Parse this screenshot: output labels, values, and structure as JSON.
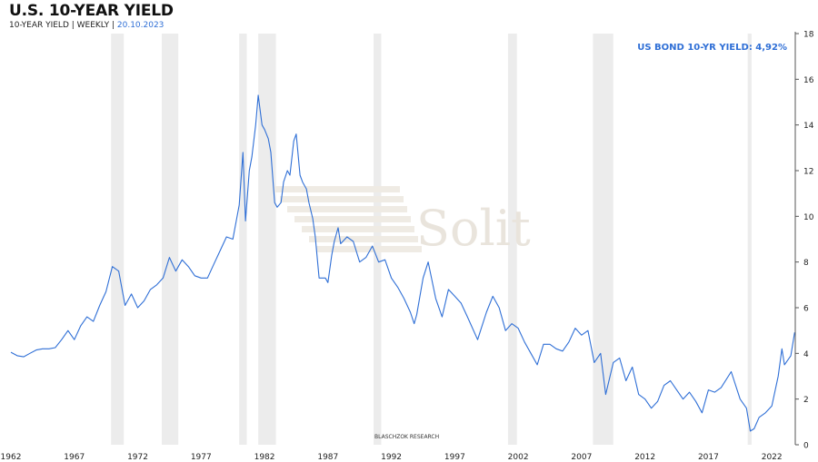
{
  "header": {
    "title": "U.S. 10-YEAR YIELD",
    "subtitle_main": "10-YEAR YIELD | WEEKLY | ",
    "subtitle_date": "20.10.2023"
  },
  "watermark": {
    "brand": "Solit",
    "credit": "BLASCHZOK    RESEARCH"
  },
  "chart_data": {
    "type": "line",
    "title": "U.S. 10-YEAR YIELD",
    "annotation": "US BOND 10-YR YIELD: 4,92%",
    "xlabel": "",
    "ylabel": "",
    "xlim": [
      1962.0,
      2023.85
    ],
    "ylim": [
      0,
      18
    ],
    "x_ticks": [
      1962,
      1967,
      1972,
      1977,
      1982,
      1987,
      1992,
      1997,
      2002,
      2007,
      2012,
      2017,
      2022
    ],
    "y_ticks": [
      0,
      2,
      4,
      6,
      8,
      10,
      12,
      14,
      16,
      18
    ],
    "y_axis_side": "right",
    "line_color": "#2f6fd6",
    "recession_color": "#ececec",
    "recessions": [
      [
        1969.9,
        1970.9
      ],
      [
        1973.9,
        1975.2
      ],
      [
        1980.0,
        1980.6
      ],
      [
        1981.5,
        1982.9
      ],
      [
        1990.6,
        1991.2
      ],
      [
        2001.2,
        2001.9
      ],
      [
        2007.9,
        2009.5
      ],
      [
        2020.1,
        2020.4
      ]
    ],
    "series": [
      {
        "values_x": [
          1962.0,
          1962.5,
          1963.0,
          1963.5,
          1964.0,
          1964.5,
          1965.0,
          1965.5,
          1966.0,
          1966.5,
          1967.0,
          1967.5,
          1968.0,
          1968.5,
          1969.0,
          1969.5,
          1970.0,
          1970.5,
          1971.0,
          1971.5,
          1972.0,
          1972.5,
          1973.0,
          1973.5,
          1974.0,
          1974.5,
          1975.0,
          1975.5,
          1976.0,
          1976.5,
          1977.0,
          1977.5,
          1978.0,
          1978.5,
          1979.0,
          1979.5,
          1980.0,
          1980.3,
          1980.5,
          1980.8,
          1981.0,
          1981.3,
          1981.5,
          1981.8,
          1982.0,
          1982.3,
          1982.5,
          1982.8,
          1983.0,
          1983.3,
          1983.5,
          1983.8,
          1984.0,
          1984.3,
          1984.5,
          1984.8,
          1985.0,
          1985.3,
          1985.5,
          1985.8,
          1986.0,
          1986.3,
          1986.5,
          1986.8,
          1987.0,
          1987.3,
          1987.5,
          1987.8,
          1988.0,
          1988.5,
          1989.0,
          1989.5,
          1990.0,
          1990.5,
          1991.0,
          1991.5,
          1992.0,
          1992.5,
          1993.0,
          1993.5,
          1993.8,
          1994.0,
          1994.5,
          1994.9,
          1995.5,
          1996.0,
          1996.5,
          1997.0,
          1997.5,
          1998.0,
          1998.8,
          1999.5,
          2000.0,
          2000.5,
          2001.0,
          2001.5,
          2002.0,
          2002.5,
          2003.0,
          2003.5,
          2004.0,
          2004.5,
          2005.0,
          2005.5,
          2006.0,
          2006.5,
          2007.0,
          2007.5,
          2008.0,
          2008.5,
          2008.9,
          2009.5,
          2010.0,
          2010.5,
          2011.0,
          2011.5,
          2012.0,
          2012.5,
          2013.0,
          2013.5,
          2014.0,
          2014.5,
          2015.0,
          2015.5,
          2016.0,
          2016.5,
          2017.0,
          2017.5,
          2018.0,
          2018.8,
          2019.5,
          2020.0,
          2020.3,
          2020.6,
          2021.0,
          2021.5,
          2022.0,
          2022.5,
          2022.8,
          2023.0,
          2023.5,
          2023.8
        ],
        "values_y": [
          4.05,
          3.9,
          3.85,
          4.0,
          4.15,
          4.2,
          4.2,
          4.25,
          4.6,
          5.0,
          4.6,
          5.2,
          5.6,
          5.4,
          6.1,
          6.7,
          7.8,
          7.6,
          6.1,
          6.6,
          6.0,
          6.3,
          6.8,
          7.0,
          7.3,
          8.2,
          7.6,
          8.1,
          7.8,
          7.4,
          7.3,
          7.3,
          7.9,
          8.5,
          9.1,
          9.0,
          10.5,
          12.8,
          9.8,
          12.0,
          12.6,
          14.0,
          15.3,
          14.0,
          13.8,
          13.4,
          12.8,
          10.6,
          10.4,
          10.6,
          11.5,
          12.0,
          11.8,
          13.3,
          13.6,
          11.8,
          11.5,
          11.2,
          10.6,
          9.9,
          9.1,
          7.3,
          7.3,
          7.3,
          7.1,
          8.3,
          8.9,
          9.5,
          8.8,
          9.1,
          8.9,
          8.0,
          8.2,
          8.7,
          8.0,
          8.1,
          7.3,
          6.9,
          6.4,
          5.8,
          5.3,
          5.7,
          7.3,
          8.0,
          6.4,
          5.6,
          6.8,
          6.5,
          6.2,
          5.6,
          4.6,
          5.8,
          6.5,
          6.0,
          5.0,
          5.3,
          5.1,
          4.5,
          4.0,
          3.5,
          4.4,
          4.4,
          4.2,
          4.1,
          4.5,
          5.1,
          4.8,
          5.0,
          3.6,
          4.0,
          2.2,
          3.6,
          3.8,
          2.8,
          3.4,
          2.2,
          2.0,
          1.6,
          1.9,
          2.6,
          2.8,
          2.4,
          2.0,
          2.3,
          1.9,
          1.4,
          2.4,
          2.3,
          2.5,
          3.2,
          2.0,
          1.6,
          0.6,
          0.7,
          1.2,
          1.4,
          1.7,
          3.0,
          4.2,
          3.5,
          3.9,
          4.92
        ]
      }
    ]
  }
}
